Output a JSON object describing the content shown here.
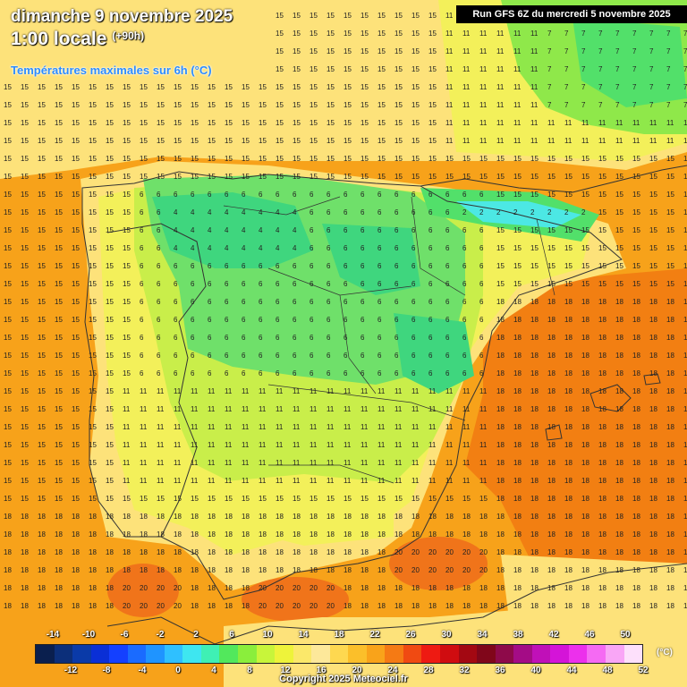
{
  "header": {
    "date": "dimanche 9 novembre 2025",
    "time": "1:00 locale",
    "lead": "(+90h)",
    "subtitle": "Températures maximales sur 6h (°C)",
    "run": "Run GFS 6Z du mercredi 5 novembre 2025"
  },
  "map": {
    "region": "Péninsule ibérique / Baléares",
    "variable": "Température maximale 6h",
    "palette": {
      "sea_warm": "#f7a21a",
      "sea_warmer": "#f27f12",
      "coast_mild": "#fde27a",
      "inland_lowland": "#f3f05a",
      "plateau": "#c9ee4a",
      "cool": "#6fe06a",
      "cold": "#3fd67e",
      "very_cold": "#4ce8e4",
      "hot_pocket": "#f0741a",
      "border_line": "#333333"
    }
  },
  "legend": {
    "unit": "(°C)",
    "top_ticks": [
      "-14",
      "-10",
      "-6",
      "-2",
      "2",
      "6",
      "10",
      "14",
      "18",
      "22",
      "26",
      "30",
      "34",
      "38",
      "42",
      "46",
      "50"
    ],
    "bottom_ticks": [
      "-12",
      "-8",
      "-4",
      "0",
      "4",
      "8",
      "12",
      "16",
      "20",
      "24",
      "28",
      "32",
      "36",
      "40",
      "44",
      "48",
      "52"
    ],
    "colors": [
      "#0a1f4e",
      "#0c2f7a",
      "#0a3aa8",
      "#0a2fd6",
      "#1440ff",
      "#1a6bff",
      "#1f94ff",
      "#2fc0ff",
      "#3ee6f0",
      "#3ff0b4",
      "#52e85c",
      "#8aee3c",
      "#c8f53a",
      "#eef33a",
      "#fbe86a",
      "#fde89a",
      "#fed850",
      "#fbbf2a",
      "#f9a31a",
      "#f57a14",
      "#f04a12",
      "#ee1a12",
      "#d00c10",
      "#a30812",
      "#80061a",
      "#8e0a4a",
      "#a40c86",
      "#c010b8",
      "#d414d8",
      "#ec30ec",
      "#f56af3",
      "#f9a6f6",
      "#fde0fb"
    ]
  },
  "footer": {
    "copyright": "Copyright 2025 Meteociel.fr"
  }
}
